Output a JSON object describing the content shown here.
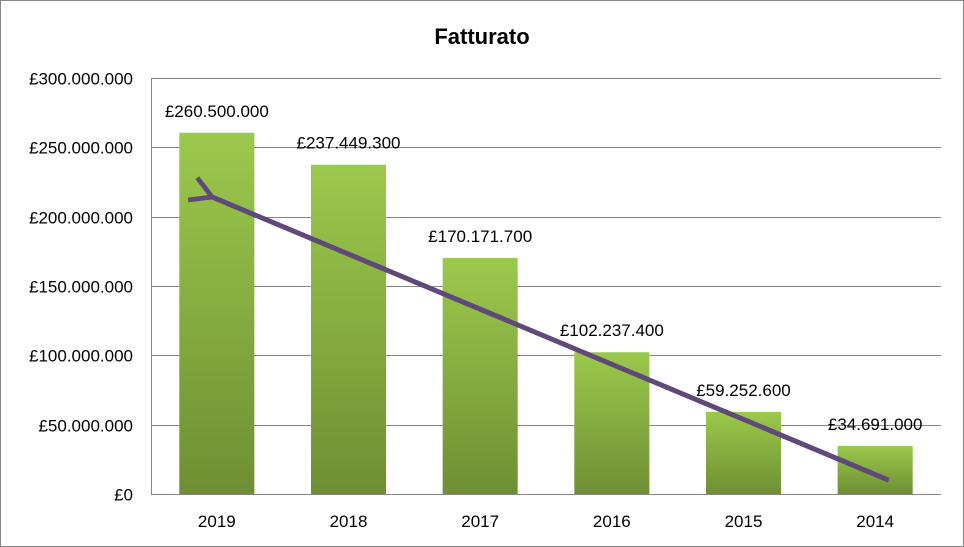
{
  "chart_data": {
    "type": "bar",
    "title": "Fatturato",
    "categories": [
      "2019",
      "2018",
      "2017",
      "2016",
      "2015",
      "2014"
    ],
    "values": [
      260500000,
      237449300,
      170171700,
      102237400,
      59252600,
      34691000
    ],
    "data_labels": [
      "£260.500.000",
      "£237.449.300",
      "£170.171.700",
      "£102.237.400",
      "£59.252.600",
      "£34.691.000"
    ],
    "ylim": [
      0,
      300000000
    ],
    "y_ticks": [
      0,
      50000000,
      100000000,
      150000000,
      200000000,
      250000000,
      300000000
    ],
    "y_tick_labels": [
      "£0",
      "£50.000.000",
      "£100.000.000",
      "£150.000.000",
      "£200.000.000",
      "£250.000.000",
      "£300.000.000"
    ],
    "xlabel": "",
    "ylabel": "",
    "grid": true,
    "legend": "none",
    "colors": {
      "bar_top": "#9bc94c",
      "bar_bottom": "#6e8f33",
      "arrow": "#5f497a",
      "grid": "#868686"
    },
    "annotation": {
      "type": "arrow",
      "from_category": "2014",
      "to_category": "2019",
      "from_value": 10000000,
      "to_value": 215000000
    }
  }
}
